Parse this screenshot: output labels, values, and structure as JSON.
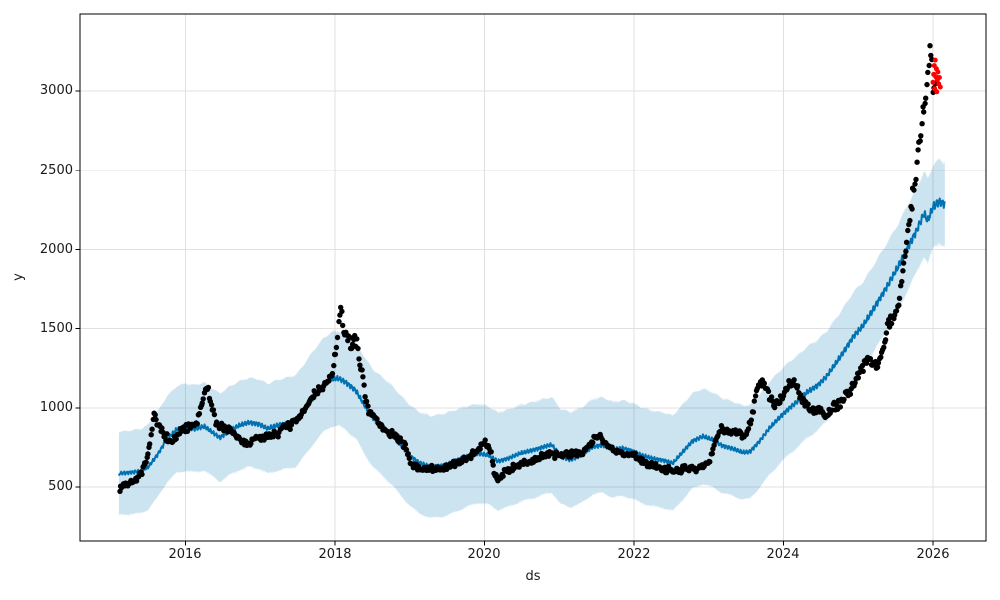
{
  "figure": {
    "background": "#ffffff"
  },
  "chart_data": {
    "type": "line",
    "title": "",
    "xlabel": "ds",
    "ylabel": "y",
    "x_range": [
      2014.589,
      2026.709
    ],
    "y_range": [
      159,
      3486
    ],
    "x_ticks": [
      2016,
      2018,
      2020,
      2022,
      2024,
      2026
    ],
    "y_ticks": [
      500,
      1000,
      1500,
      2000,
      2500,
      3000
    ],
    "grid": true,
    "grid_color": "#e0e0e0",
    "legend": false,
    "spine_color": "#000000",
    "series": [
      {
        "name": "actual",
        "type": "scatter",
        "color": "#000000",
        "marker_radius": 2.7,
        "point_interval_years": 0.0135,
        "noise_base": 13,
        "noise_frac": 0.022,
        "seed": 7,
        "anchors": [
          [
            2015.12,
            495
          ],
          [
            2015.18,
            515
          ],
          [
            2015.26,
            525
          ],
          [
            2015.34,
            545
          ],
          [
            2015.42,
            590
          ],
          [
            2015.5,
            700
          ],
          [
            2015.55,
            870
          ],
          [
            2015.58,
            960
          ],
          [
            2015.62,
            900
          ],
          [
            2015.68,
            855
          ],
          [
            2015.74,
            820
          ],
          [
            2015.8,
            775
          ],
          [
            2015.86,
            805
          ],
          [
            2015.93,
            850
          ],
          [
            2016.0,
            870
          ],
          [
            2016.08,
            880
          ],
          [
            2016.16,
            905
          ],
          [
            2016.24,
            1060
          ],
          [
            2016.29,
            1160
          ],
          [
            2016.33,
            1050
          ],
          [
            2016.4,
            920
          ],
          [
            2016.48,
            875
          ],
          [
            2016.56,
            860
          ],
          [
            2016.64,
            845
          ],
          [
            2016.72,
            800
          ],
          [
            2016.8,
            775
          ],
          [
            2016.88,
            785
          ],
          [
            2016.96,
            805
          ],
          [
            2017.05,
            815
          ],
          [
            2017.14,
            830
          ],
          [
            2017.23,
            845
          ],
          [
            2017.32,
            875
          ],
          [
            2017.41,
            895
          ],
          [
            2017.5,
            920
          ],
          [
            2017.58,
            975
          ],
          [
            2017.66,
            1040
          ],
          [
            2017.74,
            1095
          ],
          [
            2017.82,
            1125
          ],
          [
            2017.9,
            1160
          ],
          [
            2017.97,
            1220
          ],
          [
            2018.03,
            1420
          ],
          [
            2018.07,
            1620
          ],
          [
            2018.11,
            1530
          ],
          [
            2018.16,
            1440
          ],
          [
            2018.22,
            1390
          ],
          [
            2018.28,
            1430
          ],
          [
            2018.34,
            1280
          ],
          [
            2018.4,
            1090
          ],
          [
            2018.46,
            980
          ],
          [
            2018.54,
            930
          ],
          [
            2018.62,
            880
          ],
          [
            2018.7,
            850
          ],
          [
            2018.78,
            830
          ],
          [
            2018.86,
            800
          ],
          [
            2018.94,
            760
          ],
          [
            2019.0,
            655
          ],
          [
            2019.08,
            625
          ],
          [
            2019.18,
            615
          ],
          [
            2019.3,
            612
          ],
          [
            2019.42,
            618
          ],
          [
            2019.54,
            628
          ],
          [
            2019.66,
            655
          ],
          [
            2019.78,
            695
          ],
          [
            2019.9,
            725
          ],
          [
            2020.0,
            790
          ],
          [
            2020.08,
            720
          ],
          [
            2020.14,
            575
          ],
          [
            2020.2,
            555
          ],
          [
            2020.28,
            600
          ],
          [
            2020.38,
            625
          ],
          [
            2020.5,
            645
          ],
          [
            2020.62,
            665
          ],
          [
            2020.74,
            685
          ],
          [
            2020.86,
            700
          ],
          [
            2020.98,
            705
          ],
          [
            2021.1,
            705
          ],
          [
            2021.22,
            715
          ],
          [
            2021.34,
            730
          ],
          [
            2021.46,
            795
          ],
          [
            2021.54,
            830
          ],
          [
            2021.62,
            775
          ],
          [
            2021.72,
            730
          ],
          [
            2021.84,
            715
          ],
          [
            2021.96,
            705
          ],
          [
            2022.08,
            675
          ],
          [
            2022.2,
            645
          ],
          [
            2022.32,
            625
          ],
          [
            2022.44,
            612
          ],
          [
            2022.56,
            605
          ],
          [
            2022.68,
            612
          ],
          [
            2022.8,
            618
          ],
          [
            2022.92,
            625
          ],
          [
            2023.0,
            660
          ],
          [
            2023.08,
            780
          ],
          [
            2023.16,
            880
          ],
          [
            2023.24,
            845
          ],
          [
            2023.33,
            855
          ],
          [
            2023.42,
            840
          ],
          [
            2023.5,
            825
          ],
          [
            2023.58,
            960
          ],
          [
            2023.66,
            1140
          ],
          [
            2023.74,
            1160
          ],
          [
            2023.82,
            1060
          ],
          [
            2023.9,
            1010
          ],
          [
            2023.98,
            1060
          ],
          [
            2024.06,
            1140
          ],
          [
            2024.14,
            1160
          ],
          [
            2024.22,
            1080
          ],
          [
            2024.3,
            1015
          ],
          [
            2024.4,
            985
          ],
          [
            2024.5,
            995
          ],
          [
            2024.55,
            930
          ],
          [
            2024.66,
            1005
          ],
          [
            2024.76,
            1030
          ],
          [
            2024.86,
            1085
          ],
          [
            2024.96,
            1160
          ],
          [
            2025.04,
            1245
          ],
          [
            2025.12,
            1310
          ],
          [
            2025.2,
            1295
          ],
          [
            2025.27,
            1265
          ],
          [
            2025.34,
            1420
          ],
          [
            2025.41,
            1520
          ],
          [
            2025.48,
            1580
          ],
          [
            2025.54,
            1650
          ],
          [
            2025.6,
            1880
          ],
          [
            2025.66,
            2100
          ],
          [
            2025.72,
            2300
          ],
          [
            2025.78,
            2520
          ],
          [
            2025.83,
            2720
          ],
          [
            2025.88,
            2900
          ],
          [
            2025.92,
            3020
          ],
          [
            2025.95,
            3180
          ],
          [
            2025.97,
            3320
          ],
          [
            2026.0,
            3010
          ],
          [
            2026.03,
            3030
          ]
        ]
      },
      {
        "name": "forecast",
        "type": "line",
        "color": "#0072B2",
        "line_width": 2,
        "anchors": [
          [
            2015.11,
            585
          ],
          [
            2015.25,
            592
          ],
          [
            2015.4,
            600
          ],
          [
            2015.5,
            625
          ],
          [
            2015.62,
            700
          ],
          [
            2015.75,
            800
          ],
          [
            2015.88,
            862
          ],
          [
            2016.0,
            878
          ],
          [
            2016.12,
            868
          ],
          [
            2016.25,
            882
          ],
          [
            2016.38,
            838
          ],
          [
            2016.46,
            812
          ],
          [
            2016.58,
            852
          ],
          [
            2016.72,
            888
          ],
          [
            2016.85,
            908
          ],
          [
            2016.98,
            898
          ],
          [
            2017.1,
            868
          ],
          [
            2017.22,
            888
          ],
          [
            2017.35,
            902
          ],
          [
            2017.48,
            918
          ],
          [
            2017.6,
            992
          ],
          [
            2017.72,
            1072
          ],
          [
            2017.85,
            1145
          ],
          [
            2017.95,
            1180
          ],
          [
            2018.05,
            1185
          ],
          [
            2018.15,
            1160
          ],
          [
            2018.28,
            1108
          ],
          [
            2018.4,
            1010
          ],
          [
            2018.52,
            928
          ],
          [
            2018.64,
            880
          ],
          [
            2018.76,
            828
          ],
          [
            2018.88,
            762
          ],
          [
            2019.0,
            700
          ],
          [
            2019.12,
            655
          ],
          [
            2019.28,
            626
          ],
          [
            2019.45,
            638
          ],
          [
            2019.6,
            662
          ],
          [
            2019.78,
            695
          ],
          [
            2019.92,
            712
          ],
          [
            2020.05,
            700
          ],
          [
            2020.18,
            662
          ],
          [
            2020.32,
            682
          ],
          [
            2020.48,
            712
          ],
          [
            2020.64,
            732
          ],
          [
            2020.78,
            752
          ],
          [
            2020.9,
            766
          ],
          [
            2021.02,
            692
          ],
          [
            2021.15,
            672
          ],
          [
            2021.3,
            700
          ],
          [
            2021.45,
            755
          ],
          [
            2021.58,
            765
          ],
          [
            2021.72,
            735
          ],
          [
            2021.85,
            745
          ],
          [
            2021.98,
            728
          ],
          [
            2022.1,
            700
          ],
          [
            2022.25,
            680
          ],
          [
            2022.4,
            668
          ],
          [
            2022.52,
            650
          ],
          [
            2022.65,
            720
          ],
          [
            2022.78,
            790
          ],
          [
            2022.92,
            820
          ],
          [
            2023.05,
            798
          ],
          [
            2023.18,
            762
          ],
          [
            2023.32,
            742
          ],
          [
            2023.45,
            718
          ],
          [
            2023.55,
            722
          ],
          [
            2023.68,
            790
          ],
          [
            2023.82,
            875
          ],
          [
            2023.95,
            940
          ],
          [
            2024.08,
            1000
          ],
          [
            2024.2,
            1045
          ],
          [
            2024.32,
            1100
          ],
          [
            2024.45,
            1140
          ],
          [
            2024.58,
            1200
          ],
          [
            2024.7,
            1280
          ],
          [
            2024.82,
            1365
          ],
          [
            2024.94,
            1455
          ],
          [
            2025.06,
            1515
          ],
          [
            2025.18,
            1605
          ],
          [
            2025.3,
            1700
          ],
          [
            2025.42,
            1795
          ],
          [
            2025.54,
            1895
          ],
          [
            2025.66,
            2010
          ],
          [
            2025.78,
            2120
          ],
          [
            2025.88,
            2225
          ],
          [
            2025.93,
            2180
          ],
          [
            2026.0,
            2268
          ],
          [
            2026.08,
            2302
          ],
          [
            2026.16,
            2288
          ]
        ]
      },
      {
        "name": "uncertainty-band",
        "type": "band",
        "color": "#0072B2",
        "opacity": 0.2,
        "half_width_anchors": [
          [
            2015.11,
            262
          ],
          [
            2016.0,
            275
          ],
          [
            2017.0,
            282
          ],
          [
            2018.0,
            298
          ],
          [
            2019.0,
            318
          ],
          [
            2019.5,
            325
          ],
          [
            2020.0,
            310
          ],
          [
            2021.0,
            300
          ],
          [
            2022.0,
            302
          ],
          [
            2023.0,
            300
          ],
          [
            2024.0,
            292
          ],
          [
            2025.0,
            278
          ],
          [
            2026.16,
            262
          ]
        ]
      },
      {
        "name": "anomalies",
        "type": "scatter",
        "color": "#ff0000",
        "marker_radius": 2.5,
        "points": [
          [
            2026.0,
            3055
          ],
          [
            2026.01,
            3105
          ],
          [
            2026.018,
            3160
          ],
          [
            2026.022,
            3015
          ],
          [
            2026.03,
            3195
          ],
          [
            2026.038,
            3090
          ],
          [
            2026.046,
            3140
          ],
          [
            2026.05,
            2995
          ],
          [
            2026.058,
            3070
          ],
          [
            2026.066,
            3120
          ],
          [
            2026.076,
            3045
          ],
          [
            2026.086,
            3085
          ],
          [
            2026.098,
            3025
          ]
        ]
      }
    ]
  }
}
